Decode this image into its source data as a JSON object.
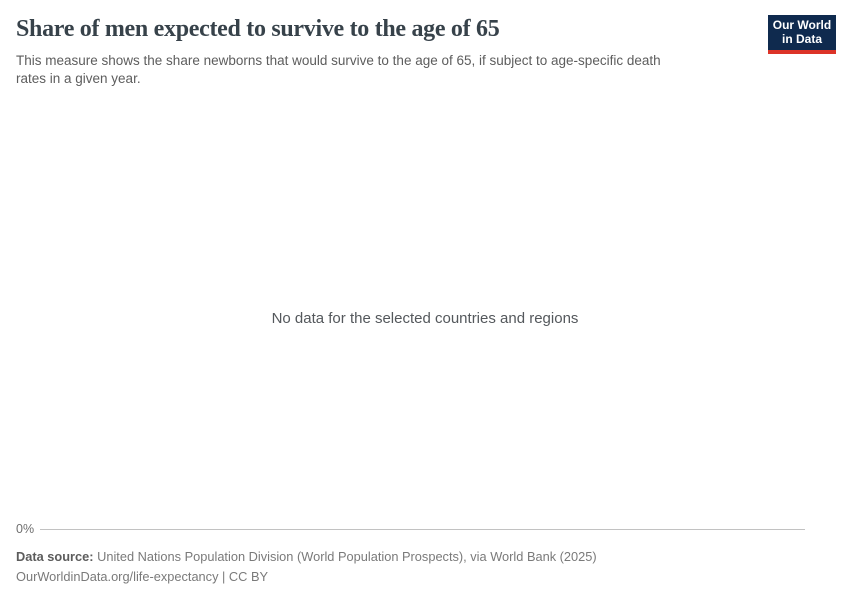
{
  "header": {
    "title": "Share of men expected to survive to the age of 65",
    "subtitle_line1": "This measure shows the share newborns that would survive to the age of 65, if subject to age-specific death",
    "subtitle_line2": "rates in a given year."
  },
  "logo": {
    "line1": "Our World",
    "line2": "in Data",
    "bg_color": "#0f2a4e",
    "accent_color": "#dc3328"
  },
  "plot": {
    "no_data_message": "No data for the selected countries and regions",
    "y_axis_tick": "0%"
  },
  "footer": {
    "source_label": "Data source:",
    "source_text": "United Nations Population Division (World Population Prospects), via World Bank (2025)",
    "citation": "OurWorldinData.org/life-expectancy | CC BY"
  },
  "colors": {
    "title_text": "#37424a",
    "subtitle_text": "#5d5d5d",
    "axis_line": "#c2c2c2",
    "footer_text": "#7a7a7a"
  },
  "chart_data": {
    "type": "line",
    "title": "Share of men expected to survive to the age of 65",
    "subtitle": "This measure shows the share newborns that would survive to the age of 65, if subject to age-specific death rates in a given year.",
    "series": [],
    "x": [],
    "categories": [],
    "y_tick_labels": [
      "0%"
    ],
    "ylim": [
      0,
      null
    ],
    "grid": false,
    "legend_position": "none",
    "annotations": [
      "No data for the selected countries and regions"
    ]
  }
}
